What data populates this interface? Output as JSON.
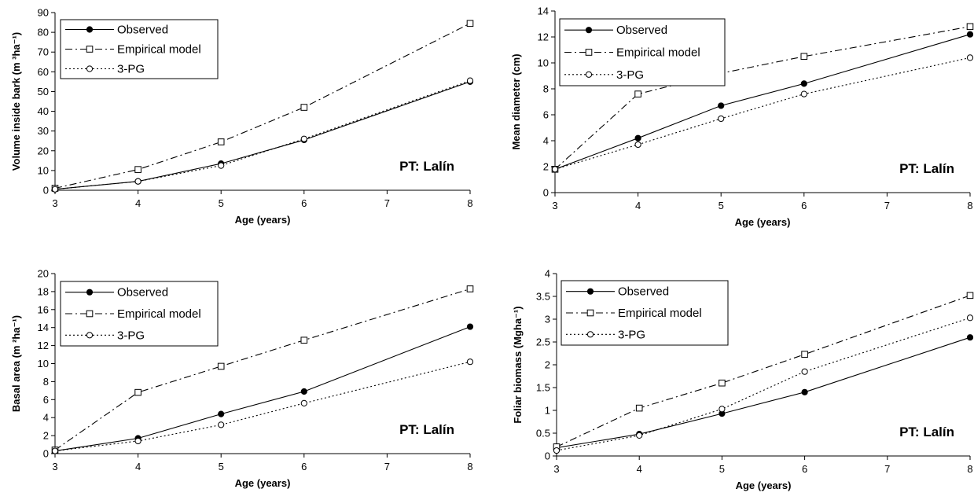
{
  "chart_data": [
    {
      "type": "line",
      "xlabel": "Age (years)",
      "ylabel": "Volume inside bark (m ³ha⁻¹)",
      "xlim": [
        3,
        8
      ],
      "ylim": [
        0,
        90
      ],
      "xticks": [
        "3",
        "4",
        "5",
        "6",
        "7",
        "8"
      ],
      "yticks": [
        "0",
        "10",
        "20",
        "30",
        "40",
        "50",
        "60",
        "70",
        "80",
        "90"
      ],
      "annotation": "PT: Lalín",
      "legend": "top-left",
      "series": [
        {
          "name": "Observed",
          "x": [
            3,
            4,
            5,
            6,
            8
          ],
          "y": [
            0.5,
            4.5,
            13.5,
            25.5,
            55
          ],
          "marker": "filled-circle",
          "line": "solid"
        },
        {
          "name": "Empirical model",
          "x": [
            3,
            4,
            5,
            6,
            8
          ],
          "y": [
            1,
            10.5,
            24.5,
            42,
            84.5
          ],
          "marker": "open-square",
          "line": "dash-dot"
        },
        {
          "name": "3-PG",
          "x": [
            3,
            4,
            5,
            6,
            8
          ],
          "y": [
            0.5,
            4.5,
            12.5,
            26,
            55.5
          ],
          "marker": "open-circle",
          "line": "dotted"
        }
      ]
    },
    {
      "type": "line",
      "xlabel": "Age (years)",
      "ylabel": "Mean diameter (cm)",
      "xlim": [
        3,
        8
      ],
      "ylim": [
        0,
        14
      ],
      "xticks": [
        "3",
        "4",
        "5",
        "6",
        "7",
        "8"
      ],
      "yticks": [
        "0",
        "2",
        "4",
        "6",
        "8",
        "10",
        "12",
        "14"
      ],
      "annotation": "PT: Lalín",
      "legend": "top-left",
      "series": [
        {
          "name": "Observed",
          "x": [
            3,
            4,
            5,
            6,
            8
          ],
          "y": [
            1.8,
            4.2,
            6.7,
            8.4,
            12.2
          ],
          "marker": "filled-circle",
          "line": "solid"
        },
        {
          "name": "Empirical model",
          "x": [
            3,
            4,
            5,
            6,
            8
          ],
          "y": [
            1.8,
            7.6,
            9.2,
            10.5,
            12.8
          ],
          "marker": "open-square",
          "line": "dash-dot"
        },
        {
          "name": "3-PG",
          "x": [
            3,
            4,
            5,
            6,
            8
          ],
          "y": [
            1.8,
            3.7,
            5.7,
            7.6,
            10.4
          ],
          "marker": "open-circle",
          "line": "dotted"
        }
      ]
    },
    {
      "type": "line",
      "xlabel": "Age (years)",
      "ylabel": "Basal area (m ²ha⁻¹)",
      "xlim": [
        3,
        8
      ],
      "ylim": [
        0,
        20
      ],
      "xticks": [
        "3",
        "4",
        "5",
        "6",
        "7",
        "8"
      ],
      "yticks": [
        "0",
        "2",
        "4",
        "6",
        "8",
        "10",
        "12",
        "14",
        "16",
        "18",
        "20"
      ],
      "annotation": "PT: Lalín",
      "legend": "top-left",
      "series": [
        {
          "name": "Observed",
          "x": [
            3,
            4,
            5,
            6,
            8
          ],
          "y": [
            0.3,
            1.7,
            4.4,
            6.9,
            14.1
          ],
          "marker": "filled-circle",
          "line": "solid"
        },
        {
          "name": "Empirical model",
          "x": [
            3,
            4,
            5,
            6,
            8
          ],
          "y": [
            0.4,
            6.8,
            9.7,
            12.6,
            18.3
          ],
          "marker": "open-square",
          "line": "dash-dot"
        },
        {
          "name": "3-PG",
          "x": [
            3,
            4,
            5,
            6,
            8
          ],
          "y": [
            0.3,
            1.4,
            3.2,
            5.6,
            10.2
          ],
          "marker": "open-circle",
          "line": "dotted"
        }
      ]
    },
    {
      "type": "line",
      "xlabel": "Age (years)",
      "ylabel": "Foliar biomass (Mgha⁻¹)",
      "xlim": [
        3,
        8
      ],
      "ylim": [
        0,
        4
      ],
      "xticks": [
        "3",
        "4",
        "5",
        "6",
        "7",
        "8"
      ],
      "yticks": [
        "0",
        "0.5",
        "1",
        "1.5",
        "2",
        "2.5",
        "3",
        "3.5",
        "4"
      ],
      "annotation": "PT: Lalín",
      "legend": "top-left",
      "series": [
        {
          "name": "Observed",
          "x": [
            3,
            4,
            5,
            6,
            8
          ],
          "y": [
            0.18,
            0.48,
            0.93,
            1.4,
            2.6
          ],
          "marker": "filled-circle",
          "line": "solid"
        },
        {
          "name": "Empirical model",
          "x": [
            3,
            4,
            5,
            6,
            8
          ],
          "y": [
            0.2,
            1.05,
            1.6,
            2.23,
            3.52
          ],
          "marker": "open-square",
          "line": "dash-dot"
        },
        {
          "name": "3-PG",
          "x": [
            3,
            4,
            5,
            6,
            8
          ],
          "y": [
            0.12,
            0.45,
            1.03,
            1.85,
            3.03
          ],
          "marker": "open-circle",
          "line": "dotted"
        }
      ]
    }
  ]
}
